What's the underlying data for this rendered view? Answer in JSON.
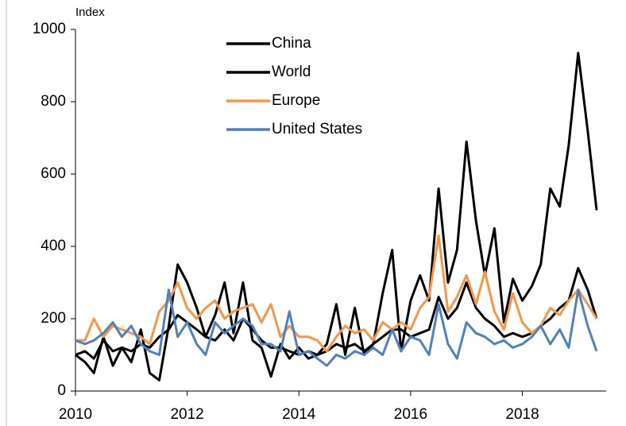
{
  "chart_data": {
    "type": "line",
    "y_label": "Index",
    "x": [
      2010.0,
      2010.17,
      2010.33,
      2010.5,
      2010.67,
      2010.83,
      2011.0,
      2011.17,
      2011.33,
      2011.5,
      2011.67,
      2011.83,
      2012.0,
      2012.17,
      2012.33,
      2012.5,
      2012.67,
      2012.83,
      2013.0,
      2013.17,
      2013.33,
      2013.5,
      2013.67,
      2013.83,
      2014.0,
      2014.17,
      2014.33,
      2014.5,
      2014.67,
      2014.83,
      2015.0,
      2015.17,
      2015.33,
      2015.5,
      2015.67,
      2015.83,
      2016.0,
      2016.17,
      2016.33,
      2016.5,
      2016.67,
      2016.83,
      2017.0,
      2017.17,
      2017.33,
      2017.5,
      2017.67,
      2017.83,
      2018.0,
      2018.17,
      2018.33,
      2018.5,
      2018.67,
      2018.83,
      2019.0,
      2019.17,
      2019.33
    ],
    "series": [
      {
        "name": "China",
        "color": "#000000",
        "values": [
          100,
          80,
          50,
          150,
          70,
          120,
          80,
          170,
          50,
          30,
          180,
          350,
          300,
          230,
          150,
          210,
          300,
          160,
          300,
          140,
          120,
          40,
          130,
          90,
          120,
          90,
          100,
          130,
          240,
          100,
          230,
          100,
          130,
          270,
          390,
          110,
          250,
          320,
          250,
          560,
          300,
          390,
          690,
          470,
          320,
          450,
          190,
          310,
          250,
          290,
          350,
          560,
          510,
          680,
          935,
          720,
          500
        ]
      },
      {
        "name": "World",
        "color": "#000000",
        "values": [
          100,
          110,
          90,
          140,
          110,
          120,
          110,
          130,
          120,
          150,
          170,
          210,
          190,
          170,
          150,
          140,
          170,
          140,
          200,
          170,
          140,
          120,
          120,
          110,
          100,
          110,
          100,
          110,
          130,
          120,
          130,
          110,
          130,
          150,
          170,
          170,
          150,
          160,
          170,
          260,
          200,
          230,
          300,
          230,
          200,
          180,
          150,
          160,
          150,
          160,
          180,
          200,
          230,
          250,
          340,
          280,
          200
        ]
      },
      {
        "name": "Europe",
        "color": "#f79646",
        "values": [
          140,
          140,
          200,
          150,
          180,
          170,
          160,
          150,
          130,
          220,
          250,
          300,
          230,
          200,
          230,
          250,
          200,
          220,
          230,
          240,
          190,
          240,
          150,
          180,
          150,
          150,
          140,
          110,
          150,
          180,
          160,
          170,
          140,
          190,
          170,
          190,
          170,
          230,
          260,
          430,
          220,
          260,
          320,
          240,
          330,
          220,
          170,
          270,
          190,
          160,
          180,
          230,
          210,
          250,
          280,
          240,
          200
        ]
      },
      {
        "name": "United States",
        "color": "#4f81bd",
        "values": [
          140,
          130,
          140,
          160,
          190,
          150,
          180,
          130,
          110,
          100,
          280,
          150,
          190,
          130,
          100,
          190,
          160,
          180,
          200,
          180,
          130,
          130,
          110,
          220,
          100,
          110,
          90,
          70,
          100,
          90,
          110,
          100,
          120,
          100,
          170,
          110,
          150,
          140,
          100,
          240,
          130,
          90,
          190,
          160,
          150,
          130,
          140,
          120,
          130,
          150,
          180,
          130,
          170,
          120,
          280,
          180,
          110
        ]
      }
    ],
    "xlim": [
      2010,
      2019.5
    ],
    "xticks": [
      2010,
      2012,
      2014,
      2016,
      2018
    ],
    "ylim": [
      0,
      1000
    ],
    "yticks": [
      0,
      200,
      400,
      600,
      800,
      1000
    ],
    "grid": false,
    "legend": "top"
  }
}
